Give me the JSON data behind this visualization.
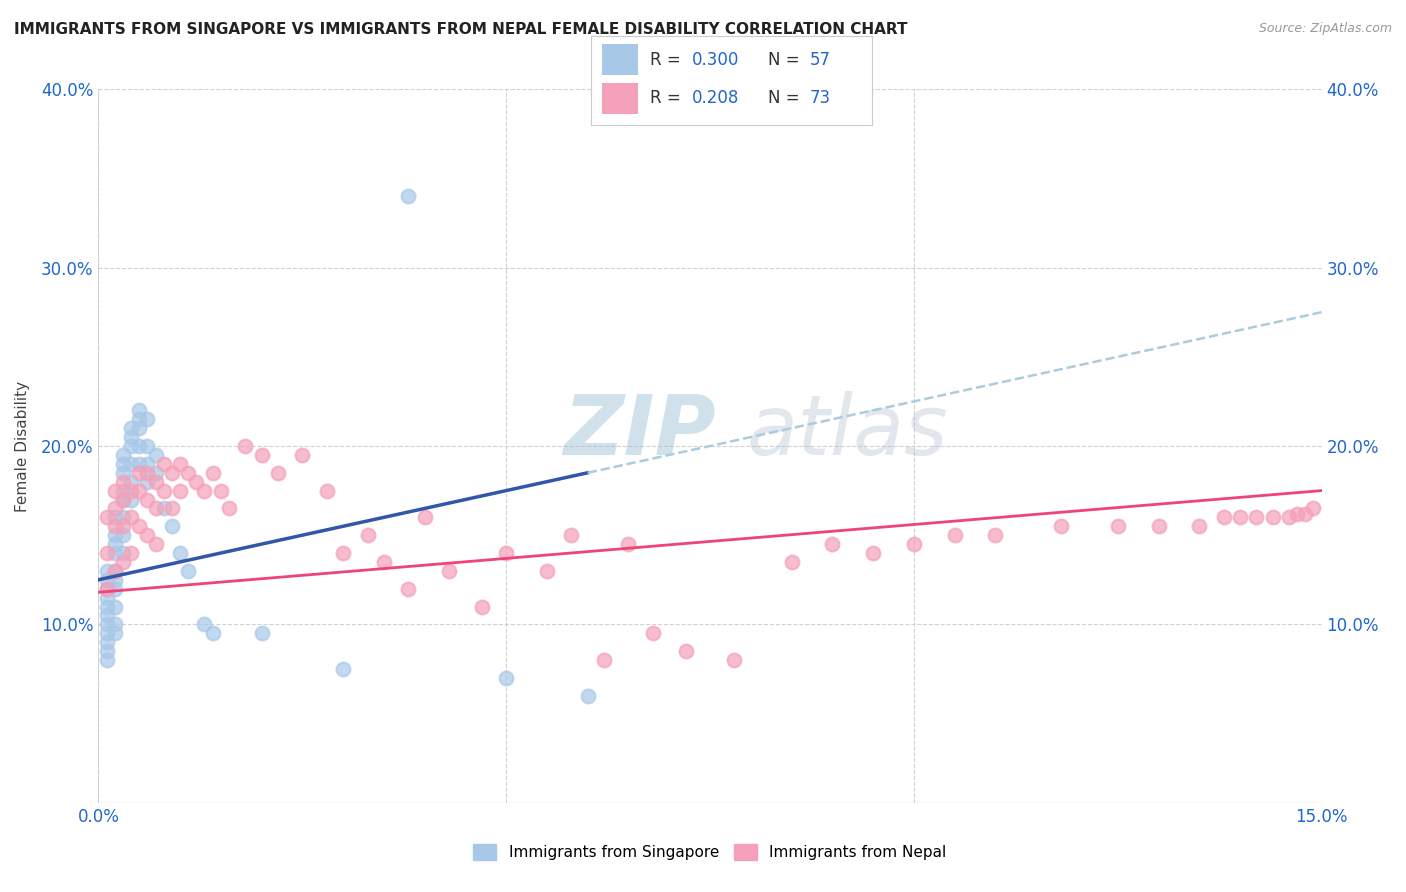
{
  "title": "IMMIGRANTS FROM SINGAPORE VS IMMIGRANTS FROM NEPAL FEMALE DISABILITY CORRELATION CHART",
  "source": "Source: ZipAtlas.com",
  "ylabel": "Female Disability",
  "xlim": [
    0,
    0.15
  ],
  "ylim": [
    0,
    0.4
  ],
  "color_singapore": "#A8C8E8",
  "color_nepal": "#F4A0B8",
  "trendline_color_singapore": "#3355AA",
  "trendline_color_nepal": "#EE4477",
  "trendline_dashed_color": "#AACCDD",
  "watermark_zip": "ZIP",
  "watermark_atlas": "atlas",
  "singapore_x": [
    0.001,
    0.001,
    0.001,
    0.001,
    0.001,
    0.001,
    0.001,
    0.001,
    0.001,
    0.001,
    0.001,
    0.002,
    0.002,
    0.002,
    0.002,
    0.002,
    0.002,
    0.002,
    0.002,
    0.002,
    0.002,
    0.003,
    0.003,
    0.003,
    0.003,
    0.003,
    0.003,
    0.003,
    0.003,
    0.004,
    0.004,
    0.004,
    0.004,
    0.004,
    0.004,
    0.005,
    0.005,
    0.005,
    0.005,
    0.005,
    0.006,
    0.006,
    0.006,
    0.006,
    0.007,
    0.007,
    0.008,
    0.009,
    0.01,
    0.011,
    0.013,
    0.014,
    0.02,
    0.03,
    0.038,
    0.05,
    0.06
  ],
  "singapore_y": [
    0.12,
    0.13,
    0.125,
    0.115,
    0.11,
    0.105,
    0.1,
    0.095,
    0.09,
    0.085,
    0.08,
    0.16,
    0.15,
    0.145,
    0.14,
    0.13,
    0.125,
    0.12,
    0.11,
    0.1,
    0.095,
    0.195,
    0.19,
    0.185,
    0.175,
    0.17,
    0.16,
    0.15,
    0.14,
    0.21,
    0.205,
    0.2,
    0.19,
    0.18,
    0.17,
    0.22,
    0.215,
    0.21,
    0.2,
    0.19,
    0.215,
    0.2,
    0.19,
    0.18,
    0.195,
    0.185,
    0.165,
    0.155,
    0.14,
    0.13,
    0.1,
    0.095,
    0.095,
    0.075,
    0.34,
    0.07,
    0.06
  ],
  "nepal_x": [
    0.001,
    0.001,
    0.001,
    0.002,
    0.002,
    0.002,
    0.002,
    0.003,
    0.003,
    0.003,
    0.003,
    0.004,
    0.004,
    0.004,
    0.005,
    0.005,
    0.005,
    0.006,
    0.006,
    0.006,
    0.007,
    0.007,
    0.007,
    0.008,
    0.008,
    0.009,
    0.009,
    0.01,
    0.01,
    0.011,
    0.012,
    0.013,
    0.014,
    0.015,
    0.016,
    0.018,
    0.02,
    0.022,
    0.025,
    0.028,
    0.03,
    0.033,
    0.035,
    0.038,
    0.04,
    0.043,
    0.047,
    0.05,
    0.055,
    0.058,
    0.062,
    0.065,
    0.068,
    0.072,
    0.078,
    0.085,
    0.09,
    0.095,
    0.1,
    0.105,
    0.11,
    0.118,
    0.125,
    0.13,
    0.135,
    0.138,
    0.14,
    0.142,
    0.144,
    0.146,
    0.147,
    0.148,
    0.149
  ],
  "nepal_y": [
    0.16,
    0.14,
    0.12,
    0.175,
    0.165,
    0.155,
    0.13,
    0.18,
    0.17,
    0.155,
    0.135,
    0.175,
    0.16,
    0.14,
    0.185,
    0.175,
    0.155,
    0.185,
    0.17,
    0.15,
    0.18,
    0.165,
    0.145,
    0.19,
    0.175,
    0.185,
    0.165,
    0.19,
    0.175,
    0.185,
    0.18,
    0.175,
    0.185,
    0.175,
    0.165,
    0.2,
    0.195,
    0.185,
    0.195,
    0.175,
    0.14,
    0.15,
    0.135,
    0.12,
    0.16,
    0.13,
    0.11,
    0.14,
    0.13,
    0.15,
    0.08,
    0.145,
    0.095,
    0.085,
    0.08,
    0.135,
    0.145,
    0.14,
    0.145,
    0.15,
    0.15,
    0.155,
    0.155,
    0.155,
    0.155,
    0.16,
    0.16,
    0.16,
    0.16,
    0.16,
    0.162,
    0.162,
    0.165
  ]
}
